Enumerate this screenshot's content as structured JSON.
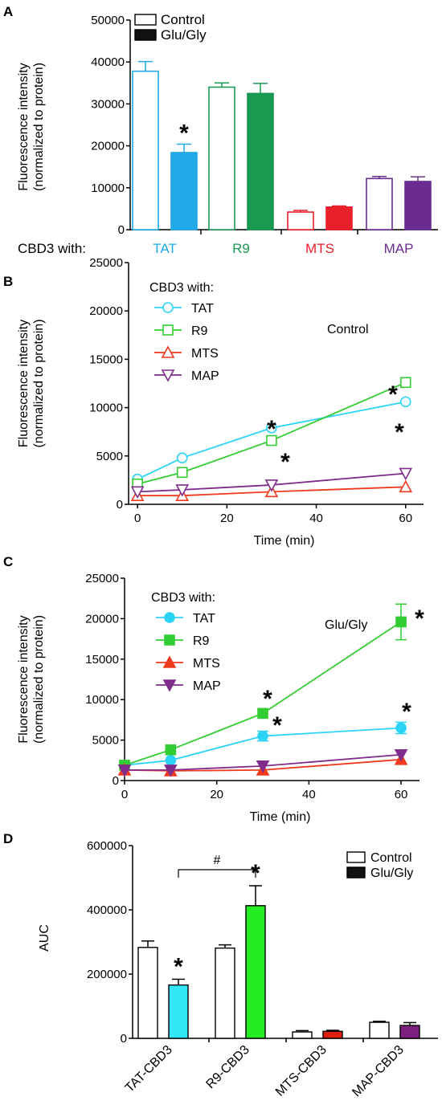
{
  "figure": {
    "background": "#ffffff",
    "panel_letters": [
      "A",
      "B",
      "C",
      "D"
    ],
    "peptide_colors": {
      "TAT_outline": "#1fa9e6",
      "TAT_fill": "#12aee9",
      "R9": "#1a9a50",
      "MTS": "#e8202a",
      "MAP": "#6b2c91",
      "TAT_line": "#2bd4f7",
      "R9_line": "#32cd32",
      "MTS_line": "#f03a1e",
      "MAP_line": "#7f2c8c",
      "D_TAT": "#33e6f5",
      "D_R9": "#22ee22",
      "D_MTS": "#dd1f10",
      "D_MAP": "#7d2080"
    }
  },
  "chart_data": [
    {
      "panel": "A",
      "type": "bar",
      "ylabel": [
        "Fluorescence intensity",
        "(normalized to protein)"
      ],
      "ylim": [
        0,
        50000
      ],
      "yticks": [
        "0",
        "10000",
        "20000",
        "30000",
        "40000",
        "50000"
      ],
      "category_prefix": "CBD3 with:",
      "categories": [
        "TAT",
        "R9",
        "MTS",
        "MAP"
      ],
      "category_colors": [
        "#1fa9e6",
        "#1a9a50",
        "#e8202a",
        "#6b2c91"
      ],
      "legend": [
        "Control",
        "Glu/Gly"
      ],
      "legend_position": "top-right",
      "series": [
        {
          "name": "Control",
          "fill": "outline",
          "values": [
            37800,
            34000,
            4200,
            12200
          ],
          "errors": [
            2300,
            1000,
            400,
            500
          ]
        },
        {
          "name": "Glu/Gly",
          "fill": "solid",
          "values": [
            18400,
            32500,
            5400,
            11500
          ],
          "errors": [
            2000,
            2400,
            250,
            1100
          ]
        }
      ],
      "significance": [
        {
          "category": "TAT",
          "series": "Glu/Gly",
          "mark": "*"
        }
      ]
    },
    {
      "panel": "B",
      "type": "line",
      "annotation": "Control",
      "xlabel": "Time (min)",
      "ylabel": [
        "Fluorescence intensity",
        "(normalized to protein)"
      ],
      "xlim": [
        -2,
        64
      ],
      "ylim": [
        0,
        25000
      ],
      "xticks": [
        "0",
        "20",
        "40",
        "60"
      ],
      "yticks": [
        "0",
        "5000",
        "10000",
        "15000",
        "20000",
        "25000"
      ],
      "legend_title": "CBD3 with:",
      "legend_position": "top-left",
      "x": [
        0,
        10,
        30,
        60
      ],
      "series": [
        {
          "name": "TAT",
          "marker": "circle-open",
          "color": "#2bd4f7",
          "values": [
            2600,
            4800,
            7900,
            10600
          ]
        },
        {
          "name": "R9",
          "marker": "square-open",
          "color": "#32cd32",
          "values": [
            2100,
            3300,
            6600,
            12600
          ]
        },
        {
          "name": "MTS",
          "marker": "triangle-up-open",
          "color": "#f03a1e",
          "values": [
            900,
            900,
            1300,
            1800
          ]
        },
        {
          "name": "MAP",
          "marker": "triangle-down-open",
          "color": "#7f2c8c",
          "values": [
            1300,
            1500,
            2000,
            3200
          ]
        }
      ],
      "significance_marks": "*"
    },
    {
      "panel": "C",
      "type": "line",
      "annotation": "Glu/Gly",
      "xlabel": "Time (min)",
      "ylabel": [
        "Fluorescence intensity",
        "(normalized to protein)"
      ],
      "xlim": [
        0,
        64
      ],
      "ylim": [
        0,
        25000
      ],
      "xticks": [
        "0",
        "20",
        "40",
        "60"
      ],
      "yticks": [
        "0",
        "5000",
        "10000",
        "15000",
        "20000",
        "25000"
      ],
      "legend_title": "CBD3 with:",
      "legend_position": "top-left",
      "x": [
        0,
        10,
        30,
        60
      ],
      "series": [
        {
          "name": "TAT",
          "marker": "circle-filled",
          "color": "#2bd4f7",
          "values": [
            1900,
            2500,
            5500,
            6500
          ],
          "errors": [
            0,
            0,
            600,
            700
          ]
        },
        {
          "name": "R9",
          "marker": "square-filled",
          "color": "#32cd32",
          "values": [
            1900,
            3800,
            8300,
            19600
          ],
          "errors": [
            0,
            0,
            0,
            2200
          ]
        },
        {
          "name": "MTS",
          "marker": "triangle-up-filled",
          "color": "#f03a1e",
          "values": [
            1300,
            1200,
            1300,
            2600
          ],
          "errors": [
            0,
            0,
            0,
            0
          ]
        },
        {
          "name": "MAP",
          "marker": "triangle-down-filled",
          "color": "#7f2c8c",
          "values": [
            1300,
            1300,
            1800,
            3200
          ],
          "errors": [
            0,
            0,
            0,
            0
          ]
        }
      ],
      "significance_marks": "*"
    },
    {
      "panel": "D",
      "type": "bar",
      "ylabel": "AUC",
      "ylim": [
        0,
        600000
      ],
      "yticks": [
        "0",
        "200000",
        "400000",
        "600000"
      ],
      "categories": [
        "TAT-CBD3",
        "R9-CBD3",
        "MTS-CBD3",
        "MAP-CBD3"
      ],
      "bar_colors": [
        "#33e6f5",
        "#22ee22",
        "#dd1f10",
        "#7d2080"
      ],
      "legend": [
        "Control",
        "Glu/Gly"
      ],
      "legend_position": "top-right",
      "series": [
        {
          "name": "Control",
          "fill": "outline",
          "values": [
            283000,
            281000,
            20000,
            50000
          ],
          "errors": [
            20000,
            10000,
            4000,
            3000
          ]
        },
        {
          "name": "Glu/Gly",
          "fill": "solid",
          "values": [
            166000,
            413000,
            22000,
            40000
          ],
          "errors": [
            18000,
            62000,
            3000,
            9000
          ]
        }
      ],
      "significance": [
        {
          "category": "TAT-CBD3",
          "series": "Glu/Gly",
          "mark": "*"
        },
        {
          "category": "R9-CBD3",
          "series": "Glu/Gly",
          "mark": "*"
        }
      ],
      "bracket": {
        "from": "TAT-CBD3 Glu/Gly",
        "to": "R9-CBD3 Glu/Gly",
        "mark": "#"
      }
    }
  ]
}
